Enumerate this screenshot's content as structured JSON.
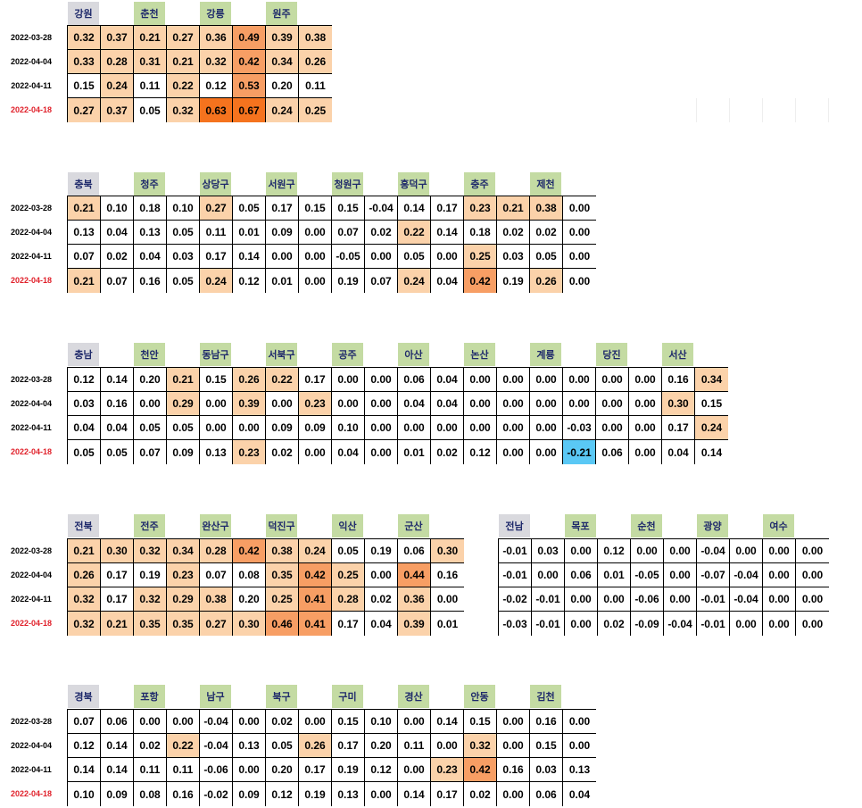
{
  "colors": {
    "header_group": "#d9d9de",
    "header_city": "#c4dba3",
    "latest_date": "#e0202a",
    "level1": "#fbd2aa",
    "level2": "#f79e64",
    "level3": "#f5731e",
    "negative": "#5ac8f5"
  },
  "tables": [
    {
      "id": "gangwon",
      "headers": [
        "강원",
        "",
        "춘천",
        "",
        "강릉",
        "",
        "원주",
        ""
      ],
      "dates": [
        "2022-03-28",
        "2022-04-04",
        "2022-04-11",
        "2022-04-18"
      ],
      "rows": [
        [
          "0.32",
          "0.37",
          "0.21",
          "0.27",
          "0.36",
          "0.49",
          "0.39",
          "0.38"
        ],
        [
          "0.33",
          "0.28",
          "0.31",
          "0.21",
          "0.32",
          "0.42",
          "0.34",
          "0.26"
        ],
        [
          "0.15",
          "0.24",
          "0.11",
          "0.22",
          "0.12",
          "0.53",
          "0.20",
          "0.11"
        ],
        [
          "0.27",
          "0.37",
          "0.05",
          "0.32",
          "0.63",
          "0.67",
          "0.24",
          "0.25"
        ]
      ]
    },
    {
      "id": "chungbuk",
      "headers": [
        "충북",
        "",
        "청주",
        "",
        "상당구",
        "",
        "서원구",
        "",
        "청원구",
        "",
        "흥덕구",
        "",
        "충주",
        "",
        "제천",
        ""
      ],
      "dates": [
        "2022-03-28",
        "2022-04-04",
        "2022-04-11",
        "2022-04-18"
      ],
      "rows": [
        [
          "0.21",
          "0.10",
          "0.18",
          "0.10",
          "0.27",
          "0.05",
          "0.17",
          "0.15",
          "0.15",
          "-0.04",
          "0.14",
          "0.17",
          "0.23",
          "0.21",
          "0.38",
          "0.00"
        ],
        [
          "0.13",
          "0.04",
          "0.13",
          "0.05",
          "0.11",
          "0.01",
          "0.09",
          "0.00",
          "0.07",
          "0.02",
          "0.22",
          "0.14",
          "0.18",
          "0.02",
          "0.02",
          "0.00"
        ],
        [
          "0.07",
          "0.02",
          "0.04",
          "0.03",
          "0.17",
          "0.14",
          "0.00",
          "0.00",
          "-0.05",
          "0.00",
          "0.05",
          "0.00",
          "0.25",
          "0.03",
          "0.05",
          "0.00"
        ],
        [
          "0.21",
          "0.07",
          "0.16",
          "0.05",
          "0.24",
          "0.12",
          "0.01",
          "0.00",
          "0.19",
          "0.07",
          "0.24",
          "0.04",
          "0.42",
          "0.19",
          "0.26",
          "0.00"
        ]
      ]
    },
    {
      "id": "chungnam",
      "headers": [
        "충남",
        "",
        "천안",
        "",
        "동남구",
        "",
        "서북구",
        "",
        "공주",
        "",
        "아산",
        "",
        "논산",
        "",
        "계룡",
        "",
        "당진",
        "",
        "서산",
        ""
      ],
      "dates": [
        "2022-03-28",
        "2022-04-04",
        "2022-04-11",
        "2022-04-18"
      ],
      "rows": [
        [
          "0.12",
          "0.14",
          "0.20",
          "0.21",
          "0.15",
          "0.26",
          "0.22",
          "0.17",
          "0.00",
          "0.00",
          "0.06",
          "0.04",
          "0.00",
          "0.00",
          "0.00",
          "0.00",
          "0.00",
          "0.00",
          "0.16",
          "0.34"
        ],
        [
          "0.03",
          "0.16",
          "0.00",
          "0.29",
          "0.00",
          "0.39",
          "0.00",
          "0.23",
          "0.00",
          "0.00",
          "0.04",
          "0.04",
          "0.00",
          "0.00",
          "0.00",
          "0.00",
          "0.00",
          "0.00",
          "0.30",
          "0.15"
        ],
        [
          "0.04",
          "0.04",
          "0.05",
          "0.05",
          "0.00",
          "0.00",
          "0.09",
          "0.09",
          "0.10",
          "0.00",
          "0.00",
          "0.00",
          "0.00",
          "0.00",
          "0.00",
          "-0.03",
          "0.00",
          "0.00",
          "0.17",
          "0.24"
        ],
        [
          "0.05",
          "0.05",
          "0.07",
          "0.09",
          "0.13",
          "0.23",
          "0.02",
          "0.00",
          "0.04",
          "0.00",
          "0.01",
          "0.02",
          "0.12",
          "0.00",
          "0.00",
          "-0.21",
          "0.06",
          "0.00",
          "0.04",
          "0.14"
        ]
      ]
    },
    {
      "id": "jeonbuk",
      "headers": [
        "전북",
        "",
        "전주",
        "",
        "완산구",
        "",
        "덕진구",
        "",
        "익산",
        "",
        "군산",
        ""
      ],
      "dates": [
        "2022-03-28",
        "2022-04-04",
        "2022-04-11",
        "2022-04-18"
      ],
      "rows": [
        [
          "0.21",
          "0.30",
          "0.32",
          "0.34",
          "0.28",
          "0.42",
          "0.38",
          "0.24",
          "0.05",
          "0.19",
          "0.06",
          "0.30"
        ],
        [
          "0.26",
          "0.17",
          "0.19",
          "0.23",
          "0.07",
          "0.08",
          "0.35",
          "0.42",
          "0.25",
          "0.00",
          "0.44",
          "0.16"
        ],
        [
          "0.32",
          "0.17",
          "0.32",
          "0.29",
          "0.38",
          "0.20",
          "0.25",
          "0.41",
          "0.28",
          "0.02",
          "0.36",
          "0.00"
        ],
        [
          "0.32",
          "0.21",
          "0.35",
          "0.35",
          "0.27",
          "0.30",
          "0.46",
          "0.41",
          "0.17",
          "0.04",
          "0.39",
          "0.01"
        ]
      ]
    },
    {
      "id": "jeonnam",
      "headers": [
        "전남",
        "",
        "목포",
        "",
        "순천",
        "",
        "광양",
        "",
        "여수",
        ""
      ],
      "dates": [],
      "rows": [
        [
          "-0.01",
          "0.03",
          "0.00",
          "0.12",
          "0.00",
          "0.00",
          "-0.04",
          "0.00",
          "0.00",
          "0.00"
        ],
        [
          "-0.01",
          "0.00",
          "0.06",
          "0.01",
          "-0.05",
          "0.00",
          "-0.07",
          "-0.04",
          "0.00",
          "0.00"
        ],
        [
          "-0.02",
          "-0.01",
          "0.00",
          "0.00",
          "-0.06",
          "0.00",
          "-0.01",
          "-0.04",
          "0.00",
          "0.00"
        ],
        [
          "-0.03",
          "-0.01",
          "0.00",
          "0.02",
          "-0.09",
          "-0.04",
          "-0.01",
          "0.00",
          "0.00",
          "0.00"
        ]
      ]
    },
    {
      "id": "gyeongbuk",
      "headers": [
        "경북",
        "",
        "포항",
        "",
        "남구",
        "",
        "북구",
        "",
        "구미",
        "",
        "경산",
        "",
        "안동",
        "",
        "김천",
        ""
      ],
      "dates": [
        "2022-03-28",
        "2022-04-04",
        "2022-04-11",
        "2022-04-18"
      ],
      "rows": [
        [
          "0.07",
          "0.06",
          "0.00",
          "0.00",
          "-0.04",
          "0.00",
          "0.02",
          "0.00",
          "0.15",
          "0.10",
          "0.00",
          "0.14",
          "0.15",
          "0.00",
          "0.16",
          "0.00"
        ],
        [
          "0.12",
          "0.14",
          "0.02",
          "0.22",
          "-0.04",
          "0.13",
          "0.05",
          "0.26",
          "0.17",
          "0.20",
          "0.11",
          "0.00",
          "0.32",
          "0.00",
          "0.15",
          "0.00"
        ],
        [
          "0.14",
          "0.14",
          "0.11",
          "0.11",
          "-0.06",
          "0.00",
          "0.20",
          "0.17",
          "0.19",
          "0.12",
          "0.00",
          "0.23",
          "0.42",
          "0.16",
          "0.03",
          "0.13"
        ],
        [
          "0.10",
          "0.09",
          "0.08",
          "0.16",
          "-0.02",
          "0.09",
          "0.12",
          "0.19",
          "0.13",
          "0.00",
          "0.14",
          "0.17",
          "0.02",
          "0.00",
          "0.06",
          "0.04"
        ]
      ]
    }
  ]
}
